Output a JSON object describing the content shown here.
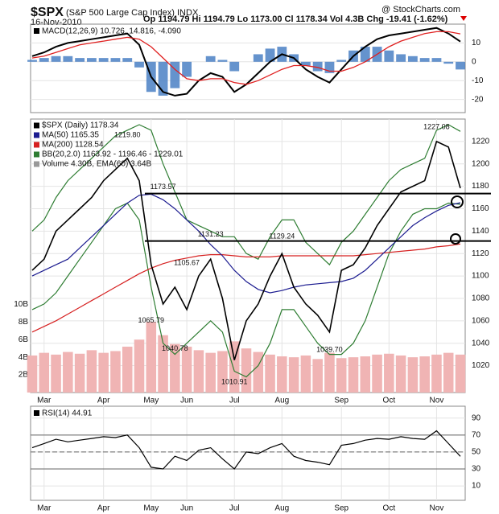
{
  "header": {
    "symbol": "$SPX",
    "name": "(S&P 500 Large Cap Index) INDX",
    "source": "@ StockCharts.com",
    "date": "16-Nov-2010",
    "quote": "Op 1194.79 Hi 1194.79 Lo 1173.00 Cl 1178.34 Vol 4.3B Chg -19.41 (-1.62%)"
  },
  "chart_data": [
    {
      "type": "macd",
      "ylim": [
        -27,
        20
      ],
      "yticks": [
        -20,
        -10,
        0,
        10
      ],
      "series": [
        {
          "name": "MACD(12,26,9) 10.726, 14.816, -4.090",
          "color": "#000000",
          "values": [
            3,
            5,
            8,
            10,
            11,
            12,
            13,
            14,
            15,
            9,
            -8,
            -16,
            -18,
            -17,
            -10,
            -6,
            -8,
            -16,
            -12,
            -6,
            0,
            4,
            2,
            -4,
            -8,
            -11,
            -4,
            3,
            8,
            12,
            14,
            15,
            16,
            17,
            18,
            15,
            10.726
          ]
        },
        {
          "color": "#e02020",
          "values": [
            2,
            3,
            5,
            7,
            9,
            10,
            11,
            12,
            13,
            12,
            8,
            2,
            -4,
            -9,
            -10,
            -9,
            -9,
            -11,
            -12,
            -10,
            -7,
            -4,
            -2,
            -2,
            -3,
            -5,
            -5,
            -3,
            0,
            4,
            8,
            11,
            13,
            15,
            16,
            16,
            14.816
          ]
        }
      ],
      "histogram": {
        "color": "#4a80c4",
        "values": [
          1,
          2,
          3,
          3,
          2,
          2,
          2,
          2,
          2,
          -3,
          -16,
          -18,
          -14,
          -8,
          0,
          3,
          1,
          -5,
          0,
          4,
          7,
          8,
          4,
          -2,
          -5,
          -6,
          1,
          6,
          8,
          8,
          6,
          4,
          3,
          2,
          2,
          -1,
          -4.09
        ]
      }
    },
    {
      "type": "price",
      "ylim": [
        996,
        1240
      ],
      "yticks": [
        1020,
        1040,
        1060,
        1080,
        1100,
        1120,
        1140,
        1160,
        1180,
        1200,
        1220
      ],
      "categories": [
        null,
        "Mar",
        null,
        null,
        null,
        null,
        "Apr",
        null,
        null,
        null,
        "May",
        null,
        null,
        "Jun",
        null,
        null,
        null,
        "Jul",
        null,
        null,
        null,
        "Aug",
        null,
        null,
        null,
        null,
        "Sep",
        null,
        null,
        null,
        "Oct",
        null,
        null,
        null,
        "Nov",
        null,
        null
      ],
      "series": [
        {
          "name": "$SPX (Daily) 1178.34",
          "color": "#000000",
          "values": [
            1105,
            1115,
            1140,
            1150,
            1160,
            1170,
            1185,
            1195,
            1205,
            1185,
            1110,
            1075,
            1090,
            1070,
            1100,
            1115,
            1080,
            1025,
            1060,
            1075,
            1100,
            1120,
            1090,
            1075,
            1065,
            1050,
            1105,
            1110,
            1125,
            1145,
            1160,
            1175,
            1180,
            1185,
            1220,
            1215,
            1178.34
          ]
        },
        {
          "name": "MA(50) 1165.35",
          "color": "#1c1c90",
          "values": [
            1100,
            1105,
            1110,
            1115,
            1125,
            1135,
            1145,
            1155,
            1165,
            1172,
            1173,
            1168,
            1160,
            1150,
            1140,
            1128,
            1118,
            1105,
            1095,
            1088,
            1085,
            1087,
            1090,
            1092,
            1093,
            1094,
            1095,
            1098,
            1105,
            1115,
            1125,
            1135,
            1145,
            1152,
            1158,
            1163,
            1165.35
          ]
        },
        {
          "name": "MA(200) 1128.54",
          "color": "#d62020",
          "values": [
            1050,
            1055,
            1060,
            1066,
            1072,
            1078,
            1084,
            1090,
            1096,
            1102,
            1107,
            1111,
            1114,
            1116,
            1118,
            1119,
            1119,
            1118,
            1117,
            1117,
            1117,
            1118,
            1118,
            1118,
            1118,
            1118,
            1118,
            1118,
            1119,
            1120,
            1121,
            1122,
            1123,
            1124,
            1126,
            1127,
            1128.54
          ]
        },
        {
          "name": "BB(20,2.0) 1163.92 - 1196.46 - 1229.01",
          "color": "#2e7d32",
          "values": [
            1140,
            1150,
            1170,
            1185,
            1195,
            1205,
            1215,
            1225,
            1230,
            1235,
            1230,
            1200,
            1175,
            1150,
            1145,
            1140,
            1135,
            1135,
            1120,
            1115,
            1135,
            1150,
            1150,
            1130,
            1120,
            1110,
            1130,
            1140,
            1155,
            1170,
            1185,
            1195,
            1200,
            1205,
            1230,
            1235,
            1229.01
          ]
        },
        {
          "color": "#2e7d32",
          "values": [
            1070,
            1075,
            1085,
            1100,
            1115,
            1130,
            1145,
            1160,
            1165,
            1150,
            1090,
            1040,
            1030,
            1040,
            1050,
            1060,
            1050,
            1015,
            1010,
            1020,
            1040,
            1070,
            1070,
            1055,
            1040,
            1030,
            1030,
            1040,
            1060,
            1090,
            1120,
            1140,
            1155,
            1160,
            1160,
            1165,
            1163.92
          ]
        }
      ],
      "volume": {
        "name": "Volume 4.30B, EMA(60) 3.64B",
        "color": "#f0b4b4",
        "axis": "y2",
        "values": [
          4.2,
          4.5,
          4.3,
          4.6,
          4.4,
          4.8,
          4.5,
          4.7,
          5.2,
          6.0,
          8.0,
          6.5,
          5.5,
          5.2,
          4.8,
          4.5,
          4.7,
          5.8,
          5.0,
          4.6,
          4.3,
          4.1,
          4.0,
          4.2,
          3.8,
          4.5,
          3.9,
          4.0,
          4.1,
          4.3,
          4.4,
          4.2,
          4.0,
          4.1,
          4.3,
          4.5,
          4.3
        ]
      },
      "y2lim": [
        0,
        31
      ],
      "y2ticks": [
        {
          "value": 2,
          "label": "2B"
        },
        {
          "value": 4,
          "label": "4B"
        },
        {
          "value": 6,
          "label": "6B"
        },
        {
          "value": 8,
          "label": "8B"
        },
        {
          "value": 10,
          "label": "10B"
        }
      ],
      "annotations": [
        {
          "value": 1219.8,
          "label": "1219.80",
          "x": 8
        },
        {
          "value": 1173.57,
          "label": "1173.57",
          "x": 11
        },
        {
          "value": 1065.79,
          "label": "1065.79",
          "x": 10
        },
        {
          "value": 1040.78,
          "label": "1040.78",
          "x": 12
        },
        {
          "value": 1105.67,
          "label": "1105.67",
          "x": 13
        },
        {
          "value": 1131.23,
          "label": "1131.23",
          "x": 15
        },
        {
          "value": 1010.91,
          "label": "1010.91",
          "x": 17
        },
        {
          "value": 1129.24,
          "label": "1129.24",
          "x": 21
        },
        {
          "value": 1039.7,
          "label": "1039.70",
          "x": 25
        },
        {
          "value": 1227.08,
          "label": "1227.08",
          "x": 34
        }
      ],
      "hlines": [
        1173.57,
        1131.23
      ]
    },
    {
      "type": "rsi",
      "ylim": [
        -7,
        104
      ],
      "yticks": [
        10,
        30,
        50,
        70,
        90
      ],
      "categories": [
        null,
        "Mar",
        null,
        null,
        null,
        null,
        "Apr",
        null,
        null,
        null,
        "May",
        null,
        null,
        "Jun",
        null,
        null,
        null,
        "Jul",
        null,
        null,
        null,
        "Aug",
        null,
        null,
        null,
        null,
        "Sep",
        null,
        null,
        null,
        "Oct",
        null,
        null,
        null,
        "Nov",
        null,
        null
      ],
      "series": [
        {
          "name": "RSI(14) 44.91",
          "color": "#000000",
          "values": [
            55,
            60,
            65,
            62,
            64,
            66,
            68,
            67,
            70,
            55,
            32,
            30,
            45,
            40,
            52,
            55,
            42,
            30,
            50,
            48,
            55,
            60,
            45,
            40,
            38,
            35,
            58,
            60,
            64,
            66,
            65,
            68,
            66,
            65,
            75,
            60,
            44.91
          ]
        }
      ]
    }
  ]
}
